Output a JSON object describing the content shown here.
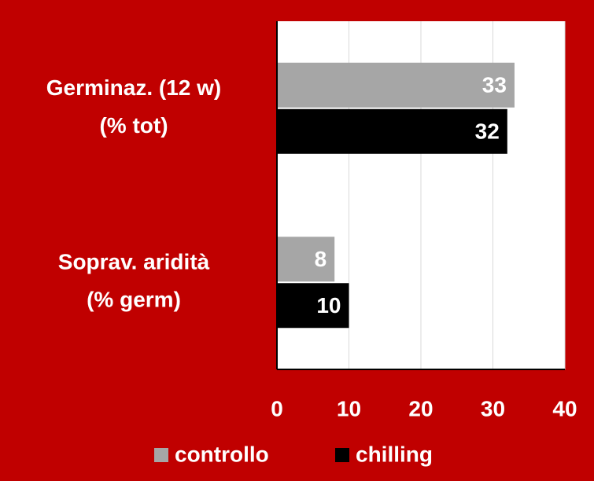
{
  "chart_data": {
    "type": "bar",
    "orientation": "horizontal",
    "categories": [
      "Germinaz. (12 w)\n(% tot)",
      "Soprav. aridità\n(% germ)"
    ],
    "series": [
      {
        "name": "controllo",
        "color": "#a6a6a6",
        "values": [
          33,
          8
        ]
      },
      {
        "name": "chilling",
        "color": "#000000",
        "values": [
          32,
          10
        ]
      }
    ],
    "xlim": [
      0,
      40
    ],
    "xticks": [
      0,
      10,
      20,
      30,
      40
    ],
    "grid": true,
    "legend": "bottom"
  }
}
